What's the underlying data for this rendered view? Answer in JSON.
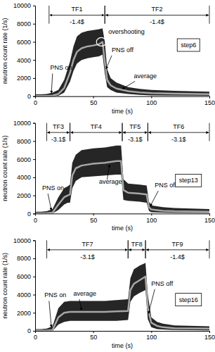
{
  "chart_data": [
    {
      "type": "line",
      "title": "step6",
      "x_label": "time (s)",
      "y_label": "neutron count rate (1/s)",
      "xlim": [
        0,
        150
      ],
      "xticks": [
        0,
        50,
        100,
        150
      ],
      "ylim": [
        0,
        10000
      ],
      "yticks": [
        0,
        2000,
        4000,
        6000,
        8000,
        10000
      ],
      "grid": false,
      "x": [
        0,
        5,
        10,
        15,
        20,
        25,
        30,
        33,
        36,
        40,
        45,
        50,
        55,
        58,
        60,
        62,
        65,
        70,
        80,
        90,
        100,
        120,
        150
      ],
      "series": [
        {
          "type": "area",
          "color": "#000000",
          "values": [
            200,
            200,
            250,
            400,
            700,
            1800,
            3800,
            5500,
            6600,
            7000,
            7200,
            7300,
            7400,
            7500,
            6000,
            3000,
            2000,
            1500,
            1000,
            800,
            700,
            600,
            500
          ],
          "low": [
            0,
            0,
            0,
            0,
            50,
            400,
            1600,
            2800,
            3600,
            4000,
            4200,
            4300,
            4400,
            4600,
            2500,
            1000,
            700,
            400,
            250,
            150,
            100,
            80,
            60
          ]
        },
        {
          "type": "line",
          "color": "#a6a6a6",
          "values": [
            30,
            30,
            40,
            80,
            250,
            900,
            2600,
            4000,
            4900,
            5300,
            5500,
            5600,
            5750,
            6000,
            3800,
            1800,
            1200,
            850,
            550,
            420,
            350,
            280,
            230
          ]
        }
      ],
      "intervals": [
        {
          "label": "TF1",
          "reactivity": "-1.4$",
          "start": 12,
          "end": 60
        },
        {
          "label": "TF2",
          "reactivity": "-1.4$",
          "start": 60,
          "end": 150
        }
      ],
      "annotations": [
        "PNS on",
        "overshooting",
        "PNS off",
        "average"
      ]
    },
    {
      "type": "line",
      "title": "step13",
      "x_label": "time (s)",
      "y_label": "neutron count rate (1/s)",
      "xlim": [
        0,
        150
      ],
      "xticks": [
        0,
        50,
        100,
        150
      ],
      "ylim": [
        0,
        10000
      ],
      "yticks": [
        0,
        2000,
        4000,
        6000,
        8000,
        10000
      ],
      "grid": false,
      "x": [
        0,
        5,
        10,
        15,
        20,
        25,
        28,
        30,
        32,
        35,
        40,
        50,
        60,
        70,
        74,
        76,
        80,
        90,
        96,
        98,
        100,
        110,
        120,
        150
      ],
      "series": [
        {
          "type": "area",
          "color": "#000000",
          "values": [
            200,
            200,
            250,
            500,
            1800,
            2800,
            3000,
            3200,
            5600,
            6500,
            7000,
            7200,
            7300,
            7500,
            7500,
            3800,
            3300,
            3200,
            3100,
            1300,
            900,
            700,
            600,
            500
          ],
          "low": [
            0,
            0,
            0,
            0,
            400,
            1000,
            1200,
            1200,
            2800,
            3600,
            4000,
            4100,
            4200,
            4300,
            4300,
            1500,
            1400,
            1300,
            1200,
            300,
            150,
            100,
            80,
            60
          ]
        },
        {
          "type": "line",
          "color": "#a6a6a6",
          "values": [
            30,
            30,
            40,
            100,
            1000,
            1800,
            2000,
            2100,
            4200,
            5000,
            5300,
            5500,
            5600,
            5800,
            5800,
            2600,
            2300,
            2200,
            2100,
            700,
            450,
            300,
            250,
            200
          ]
        }
      ],
      "intervals": [
        {
          "label": "TF3",
          "reactivity": "-3.1$",
          "start": 10,
          "end": 30
        },
        {
          "label": "TF4",
          "start": 30,
          "end": 75
        },
        {
          "label": "TF5",
          "reactivity": "-3.1$",
          "start": 75,
          "end": 97
        },
        {
          "label": "TF6",
          "reactivity": "-3.1$",
          "start": 97,
          "end": 150
        }
      ],
      "annotations": [
        "PNS on",
        "average",
        "PNS off"
      ]
    },
    {
      "type": "line",
      "title": "step16",
      "x_label": "time (s)",
      "y_label": "neutron count rate (1/s)",
      "xlim": [
        0,
        150
      ],
      "xticks": [
        0,
        50,
        100,
        150
      ],
      "ylim": [
        0,
        10000
      ],
      "yticks": [
        0,
        2000,
        4000,
        6000,
        8000,
        10000
      ],
      "grid": false,
      "x": [
        0,
        5,
        10,
        15,
        20,
        25,
        30,
        40,
        50,
        60,
        70,
        80,
        82,
        85,
        90,
        95,
        97,
        100,
        105,
        110,
        120,
        150
      ],
      "series": [
        {
          "type": "area",
          "color": "#000000",
          "values": [
            200,
            200,
            250,
            500,
            2500,
            3200,
            3300,
            3300,
            3300,
            3300,
            3400,
            3500,
            5800,
            6800,
            7200,
            7500,
            4000,
            1500,
            1000,
            800,
            600,
            500
          ],
          "low": [
            0,
            0,
            0,
            0,
            700,
            1000,
            1100,
            1100,
            1100,
            1100,
            1100,
            1200,
            3200,
            3800,
            4200,
            4500,
            1300,
            400,
            200,
            150,
            100,
            60
          ]
        },
        {
          "type": "line",
          "color": "#a6a6a6",
          "values": [
            30,
            30,
            40,
            100,
            1500,
            2000,
            2100,
            2100,
            2100,
            2100,
            2150,
            2200,
            4500,
            5200,
            5600,
            6000,
            2500,
            900,
            550,
            400,
            300,
            250
          ]
        }
      ],
      "intervals": [
        {
          "label": "TF7",
          "reactivity": "-3.1$",
          "start": 10,
          "end": 80
        },
        {
          "label": "TF8",
          "start": 80,
          "end": 95
        },
        {
          "label": "TF9",
          "reactivity": "-1.4$",
          "start": 95,
          "end": 150
        }
      ],
      "annotations": [
        "PNS on",
        "average",
        "PNS off"
      ]
    }
  ]
}
